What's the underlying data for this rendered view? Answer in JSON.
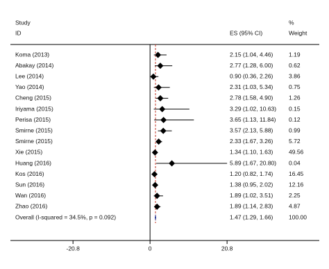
{
  "chart_data": {
    "type": "forest",
    "header": {
      "study": "Study",
      "id": "ID",
      "es": "ES (95% CI)",
      "pct": "%",
      "weight": "Weight"
    },
    "categories": [
      "Koma (2013)",
      "Abakay (2014)",
      "Lee (2014)",
      "Yao (2014)",
      "Cheng (2015)",
      "Iriyama (2015)",
      "Perisa (2015)",
      "Smirne (2015)",
      "Smirne (2015)",
      "Xie (2015)",
      "Huang (2016)",
      "Kos (2016)",
      "Sun (2016)",
      "Wan (2016)",
      "Zhao (2016)"
    ],
    "es": [
      2.15,
      2.77,
      0.9,
      2.31,
      2.78,
      3.29,
      3.65,
      3.57,
      2.33,
      1.34,
      5.89,
      1.2,
      1.38,
      1.89,
      1.89
    ],
    "lo": [
      1.04,
      1.28,
      0.36,
      1.03,
      1.58,
      1.02,
      1.13,
      2.13,
      1.67,
      1.1,
      1.67,
      0.82,
      0.95,
      1.02,
      1.14
    ],
    "hi": [
      4.46,
      6.0,
      2.26,
      5.34,
      4.9,
      10.63,
      11.84,
      5.88,
      3.26,
      1.63,
      20.8,
      1.74,
      2.02,
      3.51,
      2.83
    ],
    "value_labels": [
      "2.15 (1.04, 4.46)",
      "2.77 (1.28, 6.00)",
      "0.90 (0.36, 2.26)",
      "2.31 (1.03, 5.34)",
      "2.78 (1.58, 4.90)",
      "3.29 (1.02, 10.63)",
      "3.65 (1.13, 11.84)",
      "3.57 (2.13, 5.88)",
      "2.33 (1.67, 3.26)",
      "1.34 (1.10, 1.63)",
      "5.89 (1.67, 20.80)",
      "1.20 (0.82, 1.74)",
      "1.38 (0.95, 2.02)",
      "1.89 (1.02, 3.51)",
      "1.89 (1.14, 2.83)"
    ],
    "weights": [
      "1.19",
      "0.62",
      "3.86",
      "0.75",
      "1.26",
      "0.15",
      "0.12",
      "0.99",
      "5.72",
      "49.56",
      "0.04",
      "16.45",
      "12.16",
      "2.25",
      "4.87"
    ],
    "overall": {
      "label": "Overall  (I-squared = 34.5%, p = 0.092)",
      "es": 1.47,
      "lo": 1.29,
      "hi": 1.66,
      "value_label": "1.47 (1.29, 1.66)",
      "weight": "100.00",
      "color": "#1f2f8f",
      "line_color": "#c0392b"
    },
    "color": "#000000",
    "xlim": [
      -37.7,
      45.7
    ],
    "xticks": [
      -20.8,
      0,
      20.8
    ]
  }
}
